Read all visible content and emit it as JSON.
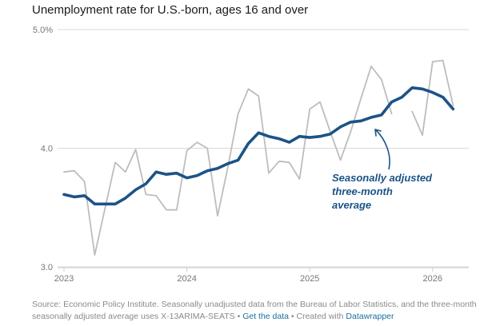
{
  "chart_data": {
    "type": "line",
    "title": "Unemployment rate for U.S.-born, ages 16 and over",
    "xlabel": "",
    "ylabel": "",
    "ylim": [
      3.0,
      5.0
    ],
    "yticks": [
      "5.0%",
      "4.0",
      "3.0"
    ],
    "xticks": [
      "2023",
      "2024",
      "2025",
      "2026"
    ],
    "x_start": "2023-01",
    "series": [
      {
        "name": "Seasonally unadjusted",
        "color": "#bdbdbd",
        "values": [
          3.8,
          3.81,
          3.72,
          3.1,
          3.49,
          3.88,
          3.8,
          3.99,
          3.61,
          3.6,
          3.48,
          3.48,
          3.98,
          4.05,
          4.0,
          3.43,
          3.84,
          4.29,
          4.5,
          4.44,
          3.79,
          3.89,
          3.88,
          3.74,
          4.33,
          4.39,
          4.14,
          3.9,
          4.14,
          4.42,
          4.69,
          4.58,
          4.29,
          null,
          4.31,
          4.11,
          4.73,
          4.74,
          4.36
        ]
      },
      {
        "name": "Seasonally adjusted three-month average",
        "color": "#1b5387",
        "values": [
          3.61,
          3.59,
          3.6,
          3.53,
          3.53,
          3.53,
          3.58,
          3.65,
          3.7,
          3.8,
          3.78,
          3.79,
          3.75,
          3.77,
          3.81,
          3.83,
          3.87,
          3.9,
          4.04,
          4.13,
          4.1,
          4.08,
          4.05,
          4.1,
          4.09,
          4.1,
          4.12,
          4.18,
          4.22,
          4.23,
          4.26,
          4.28,
          4.39,
          4.43,
          4.51,
          4.5,
          4.47,
          4.43,
          4.33
        ]
      }
    ],
    "annotation": {
      "lines": [
        "Seasonally adjusted",
        "three-month",
        "average"
      ],
      "color": "#1b5387"
    }
  },
  "footer": {
    "source_text": "Source: Economic Policy Institute. Seasonally unadjusted data from the Bureau of Labor Statistics, and the three-month seasonally adjusted average uses X-13ARIMA-SEATS",
    "separator": " • ",
    "get_data_label": "Get the data",
    "created_with_label": "Created with",
    "datawrapper_label": "Datawrapper"
  }
}
